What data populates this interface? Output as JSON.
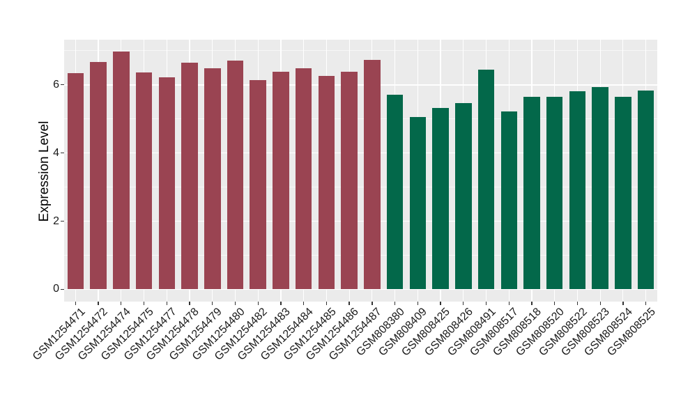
{
  "chart_data": {
    "type": "bar",
    "title": "",
    "xlabel": "",
    "ylabel": "Expression Level",
    "ylim": [
      0,
      7.33
    ],
    "yticks": [
      0,
      2,
      4,
      6
    ],
    "yminor_gridlines": [
      1,
      3,
      5,
      7
    ],
    "grid": "on",
    "legend": "none",
    "panel_background": "#EBEBEB",
    "gridline_color": "#FFFFFF",
    "axis_text_color": "#1a1a1a",
    "series": [
      {
        "name": "GSM1254471-GSM1254487",
        "color": "#9A4452",
        "categories": [
          "GSM1254471",
          "GSM1254472",
          "GSM1254474",
          "GSM1254475",
          "GSM1254477",
          "GSM1254478",
          "GSM1254479",
          "GSM1254480",
          "GSM1254482",
          "GSM1254483",
          "GSM1254484",
          "GSM1254485",
          "GSM1254486",
          "GSM1254487"
        ],
        "values": [
          6.35,
          6.68,
          6.97,
          6.37,
          6.23,
          6.66,
          6.48,
          6.72,
          6.14,
          6.39,
          6.48,
          6.27,
          6.38,
          6.73
        ]
      },
      {
        "name": "GSM808380-GSM808525",
        "color": "#03684A",
        "categories": [
          "GSM808380",
          "GSM808409",
          "GSM808425",
          "GSM808426",
          "GSM808491",
          "GSM808517",
          "GSM808518",
          "GSM808520",
          "GSM808522",
          "GSM808523",
          "GSM808524",
          "GSM808525"
        ],
        "values": [
          5.7,
          5.05,
          5.32,
          5.46,
          6.44,
          5.22,
          5.64,
          5.64,
          5.81,
          5.93,
          5.64,
          5.83
        ]
      }
    ]
  }
}
